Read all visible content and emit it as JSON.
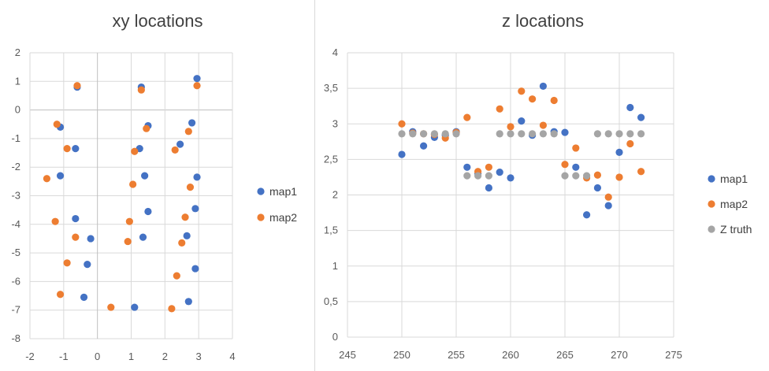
{
  "chart_data": [
    {
      "type": "scatter",
      "title": "xy locations",
      "xlabel": "",
      "ylabel": "",
      "xlim": [
        -2,
        4
      ],
      "ylim": [
        -8,
        2
      ],
      "xticks": [
        -2,
        -1,
        0,
        1,
        2,
        3,
        4
      ],
      "yticks": [
        -8,
        -7,
        -6,
        -5,
        -4,
        -3,
        -2,
        -1,
        0,
        1,
        2
      ],
      "xtick_labels": [
        "-2",
        "-1",
        "0",
        "1",
        "2",
        "3",
        "4"
      ],
      "ytick_labels": [
        "-8",
        "-7",
        "-6",
        "-5",
        "-4",
        "-3",
        "-2",
        "-1",
        "0",
        "1",
        "2"
      ],
      "grid": true,
      "legend_position": "right",
      "series": [
        {
          "name": "map1",
          "color": "#4472c4",
          "points": [
            [
              -0.6,
              0.8
            ],
            [
              1.3,
              0.8
            ],
            [
              2.95,
              1.1
            ],
            [
              -1.1,
              -0.6
            ],
            [
              -0.65,
              -1.35
            ],
            [
              1.25,
              -1.35
            ],
            [
              1.5,
              -0.55
            ],
            [
              2.8,
              -0.45
            ],
            [
              2.45,
              -1.2
            ],
            [
              -1.1,
              -2.3
            ],
            [
              1.4,
              -2.3
            ],
            [
              2.95,
              -2.35
            ],
            [
              -0.65,
              -3.8
            ],
            [
              1.5,
              -3.55
            ],
            [
              2.9,
              -3.45
            ],
            [
              -0.2,
              -4.5
            ],
            [
              1.35,
              -4.45
            ],
            [
              2.65,
              -4.4
            ],
            [
              -0.3,
              -5.4
            ],
            [
              2.9,
              -5.55
            ],
            [
              -0.4,
              -6.55
            ],
            [
              1.1,
              -6.9
            ],
            [
              2.7,
              -6.7
            ]
          ]
        },
        {
          "name": "map2",
          "color": "#ed7d31",
          "points": [
            [
              -0.6,
              0.85
            ],
            [
              1.3,
              0.7
            ],
            [
              2.95,
              0.85
            ],
            [
              -1.2,
              -0.5
            ],
            [
              -0.9,
              -1.35
            ],
            [
              1.1,
              -1.45
            ],
            [
              1.45,
              -0.65
            ],
            [
              2.7,
              -0.75
            ],
            [
              2.3,
              -1.4
            ],
            [
              -1.5,
              -2.4
            ],
            [
              1.05,
              -2.6
            ],
            [
              2.75,
              -2.7
            ],
            [
              -1.25,
              -3.9
            ],
            [
              0.95,
              -3.9
            ],
            [
              2.6,
              -3.75
            ],
            [
              -0.65,
              -4.45
            ],
            [
              0.9,
              -4.6
            ],
            [
              2.5,
              -4.65
            ],
            [
              -0.9,
              -5.35
            ],
            [
              2.35,
              -5.8
            ],
            [
              -1.1,
              -6.45
            ],
            [
              0.4,
              -6.9
            ],
            [
              2.2,
              -6.95
            ]
          ]
        }
      ]
    },
    {
      "type": "scatter",
      "title": "z locations",
      "xlabel": "",
      "ylabel": "",
      "xlim": [
        245,
        275
      ],
      "ylim": [
        0,
        4
      ],
      "xticks": [
        245,
        250,
        255,
        260,
        265,
        270,
        275
      ],
      "yticks": [
        0,
        0.5,
        1,
        1.5,
        2,
        2.5,
        3,
        3.5,
        4
      ],
      "xtick_labels": [
        "245",
        "250",
        "255",
        "260",
        "265",
        "270",
        "275"
      ],
      "ytick_labels": [
        "0",
        "0,5",
        "1",
        "1,5",
        "2",
        "2,5",
        "3",
        "3,5",
        "4"
      ],
      "grid": true,
      "legend_position": "right",
      "series": [
        {
          "name": "map1",
          "color": "#4472c4",
          "points": [
            [
              250,
              2.57
            ],
            [
              251,
              2.89
            ],
            [
              252,
              2.69
            ],
            [
              253,
              2.81
            ],
            [
              254,
              2.84
            ],
            [
              255,
              2.89
            ],
            [
              256,
              2.39
            ],
            [
              257,
              2.3
            ],
            [
              258,
              2.1
            ],
            [
              259,
              2.32
            ],
            [
              260,
              2.24
            ],
            [
              261,
              3.04
            ],
            [
              262,
              2.84
            ],
            [
              263,
              3.53
            ],
            [
              264,
              2.89
            ],
            [
              265,
              2.88
            ],
            [
              266,
              2.39
            ],
            [
              267,
              1.72
            ],
            [
              268,
              2.1
            ],
            [
              269,
              1.85
            ],
            [
              270,
              2.6
            ],
            [
              271,
              3.23
            ],
            [
              272,
              3.09
            ]
          ]
        },
        {
          "name": "map2",
          "color": "#ed7d31",
          "points": [
            [
              250,
              3.0
            ],
            [
              251,
              2.87
            ],
            [
              252,
              2.86
            ],
            [
              253,
              2.85
            ],
            [
              254,
              2.8
            ],
            [
              255,
              2.88
            ],
            [
              256,
              3.09
            ],
            [
              257,
              2.33
            ],
            [
              258,
              2.39
            ],
            [
              259,
              3.21
            ],
            [
              260,
              2.96
            ],
            [
              261,
              3.46
            ],
            [
              262,
              3.35
            ],
            [
              263,
              2.98
            ],
            [
              264,
              3.33
            ],
            [
              265,
              2.43
            ],
            [
              266,
              2.66
            ],
            [
              267,
              2.24
            ],
            [
              268,
              2.28
            ],
            [
              269,
              1.97
            ],
            [
              270,
              2.25
            ],
            [
              271,
              2.72
            ],
            [
              272,
              2.33
            ]
          ]
        },
        {
          "name": "Z truth",
          "color": "#a5a5a5",
          "points": [
            [
              250,
              2.86
            ],
            [
              251,
              2.86
            ],
            [
              252,
              2.86
            ],
            [
              253,
              2.86
            ],
            [
              254,
              2.86
            ],
            [
              255,
              2.86
            ],
            [
              256,
              2.27
            ],
            [
              257,
              2.27
            ],
            [
              258,
              2.27
            ],
            [
              259,
              2.86
            ],
            [
              260,
              2.86
            ],
            [
              261,
              2.86
            ],
            [
              262,
              2.86
            ],
            [
              263,
              2.86
            ],
            [
              264,
              2.86
            ],
            [
              265,
              2.27
            ],
            [
              266,
              2.27
            ],
            [
              267,
              2.27
            ],
            [
              268,
              2.86
            ],
            [
              269,
              2.86
            ],
            [
              270,
              2.86
            ],
            [
              271,
              2.86
            ],
            [
              272,
              2.86
            ]
          ]
        }
      ]
    }
  ]
}
